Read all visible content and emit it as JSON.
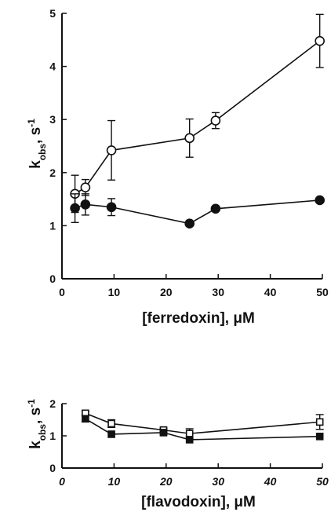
{
  "chart_data": [
    {
      "type": "scatter",
      "title": "",
      "xlabel": "[ferredoxin], μM",
      "ylabel_main": "k",
      "ylabel_sub": "obs",
      "ylabel_unit": ", s",
      "ylabel_sup": "-1",
      "xlim": [
        0,
        50
      ],
      "ylim": [
        0,
        5
      ],
      "xticks": [
        "0",
        "10",
        "20",
        "30",
        "40",
        "50"
      ],
      "yticks": [
        "0",
        "1",
        "2",
        "3",
        "4",
        "5"
      ],
      "series": [
        {
          "marker": "open-circle",
          "x": [
            2.5,
            4.5,
            9.5,
            24.5,
            29.5,
            49.5
          ],
          "y": [
            1.6,
            1.72,
            2.42,
            2.65,
            2.98,
            4.48
          ],
          "err": [
            0.35,
            0.15,
            0.56,
            0.36,
            0.15,
            0.5
          ]
        },
        {
          "marker": "filled-circle",
          "x": [
            2.5,
            4.5,
            9.5,
            24.5,
            29.5,
            49.5
          ],
          "y": [
            1.33,
            1.4,
            1.35,
            1.04,
            1.32,
            1.48
          ],
          "err": [
            0.27,
            0.2,
            0.16,
            0.0,
            0.0,
            0.0
          ]
        }
      ]
    },
    {
      "type": "scatter",
      "title": "",
      "xlabel": "[flavodoxin], μM",
      "ylabel_main": "k",
      "ylabel_sub": "obs",
      "ylabel_unit": ", s",
      "ylabel_sup": "-1",
      "xlim": [
        0,
        50
      ],
      "ylim": [
        0,
        2
      ],
      "xticks": [
        "0",
        "10",
        "20",
        "30",
        "40",
        "50"
      ],
      "yticks": [
        "0",
        "1",
        "2"
      ],
      "series": [
        {
          "marker": "open-square",
          "x": [
            4.5,
            9.5,
            19.5,
            24.5,
            49.5
          ],
          "y": [
            1.7,
            1.38,
            1.18,
            1.07,
            1.43
          ],
          "err": [
            0.05,
            0.12,
            0.06,
            0.15,
            0.23
          ]
        },
        {
          "marker": "filled-square",
          "x": [
            4.5,
            9.5,
            19.5,
            24.5,
            49.5
          ],
          "y": [
            1.53,
            1.05,
            1.1,
            0.88,
            0.98
          ],
          "err": [
            0.1,
            0.0,
            0.07,
            0.0,
            0.0
          ]
        }
      ]
    }
  ]
}
